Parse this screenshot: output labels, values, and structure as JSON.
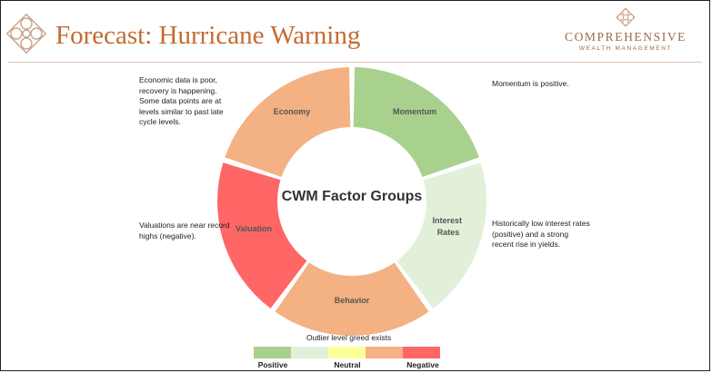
{
  "header": {
    "title": "Forecast: Hurricane Warning",
    "brand_name": "COMPREHENSIVE",
    "brand_sub": "WEALTH MANAGEMENT"
  },
  "diagram": {
    "center_label": "CWM Factor Groups",
    "segments": [
      {
        "label": "Momentum",
        "status": "Positive",
        "color": "#a9d18e"
      },
      {
        "label": "Interest Rates",
        "status": "Positive-Neutral",
        "color": "#e2f0d9"
      },
      {
        "label": "Behavior",
        "status": "Neutral-Negative",
        "color": "#f4b183"
      },
      {
        "label": "Valuation",
        "status": "Negative",
        "color": "#ff6666"
      },
      {
        "label": "Economy",
        "status": "Neutral-Negative",
        "color": "#f4b183"
      }
    ]
  },
  "notes": {
    "economy": "Economic data is poor, recovery is happening. Some data points are at levels similar to past late cycle levels.",
    "momentum": "Momentum is positive.",
    "valuation": "Valuations are near record highs (negative).",
    "interest": "Historically low interest rates (positive) and a strong recent rise in yields.",
    "behavior": "Outlier level greed exists"
  },
  "legend": {
    "swatches": [
      "#a9d18e",
      "#e2f0d9",
      "#ffff99",
      "#f4b183",
      "#ff6666"
    ],
    "positive": "Positive",
    "neutral": "Neutral",
    "negative": "Negative"
  }
}
